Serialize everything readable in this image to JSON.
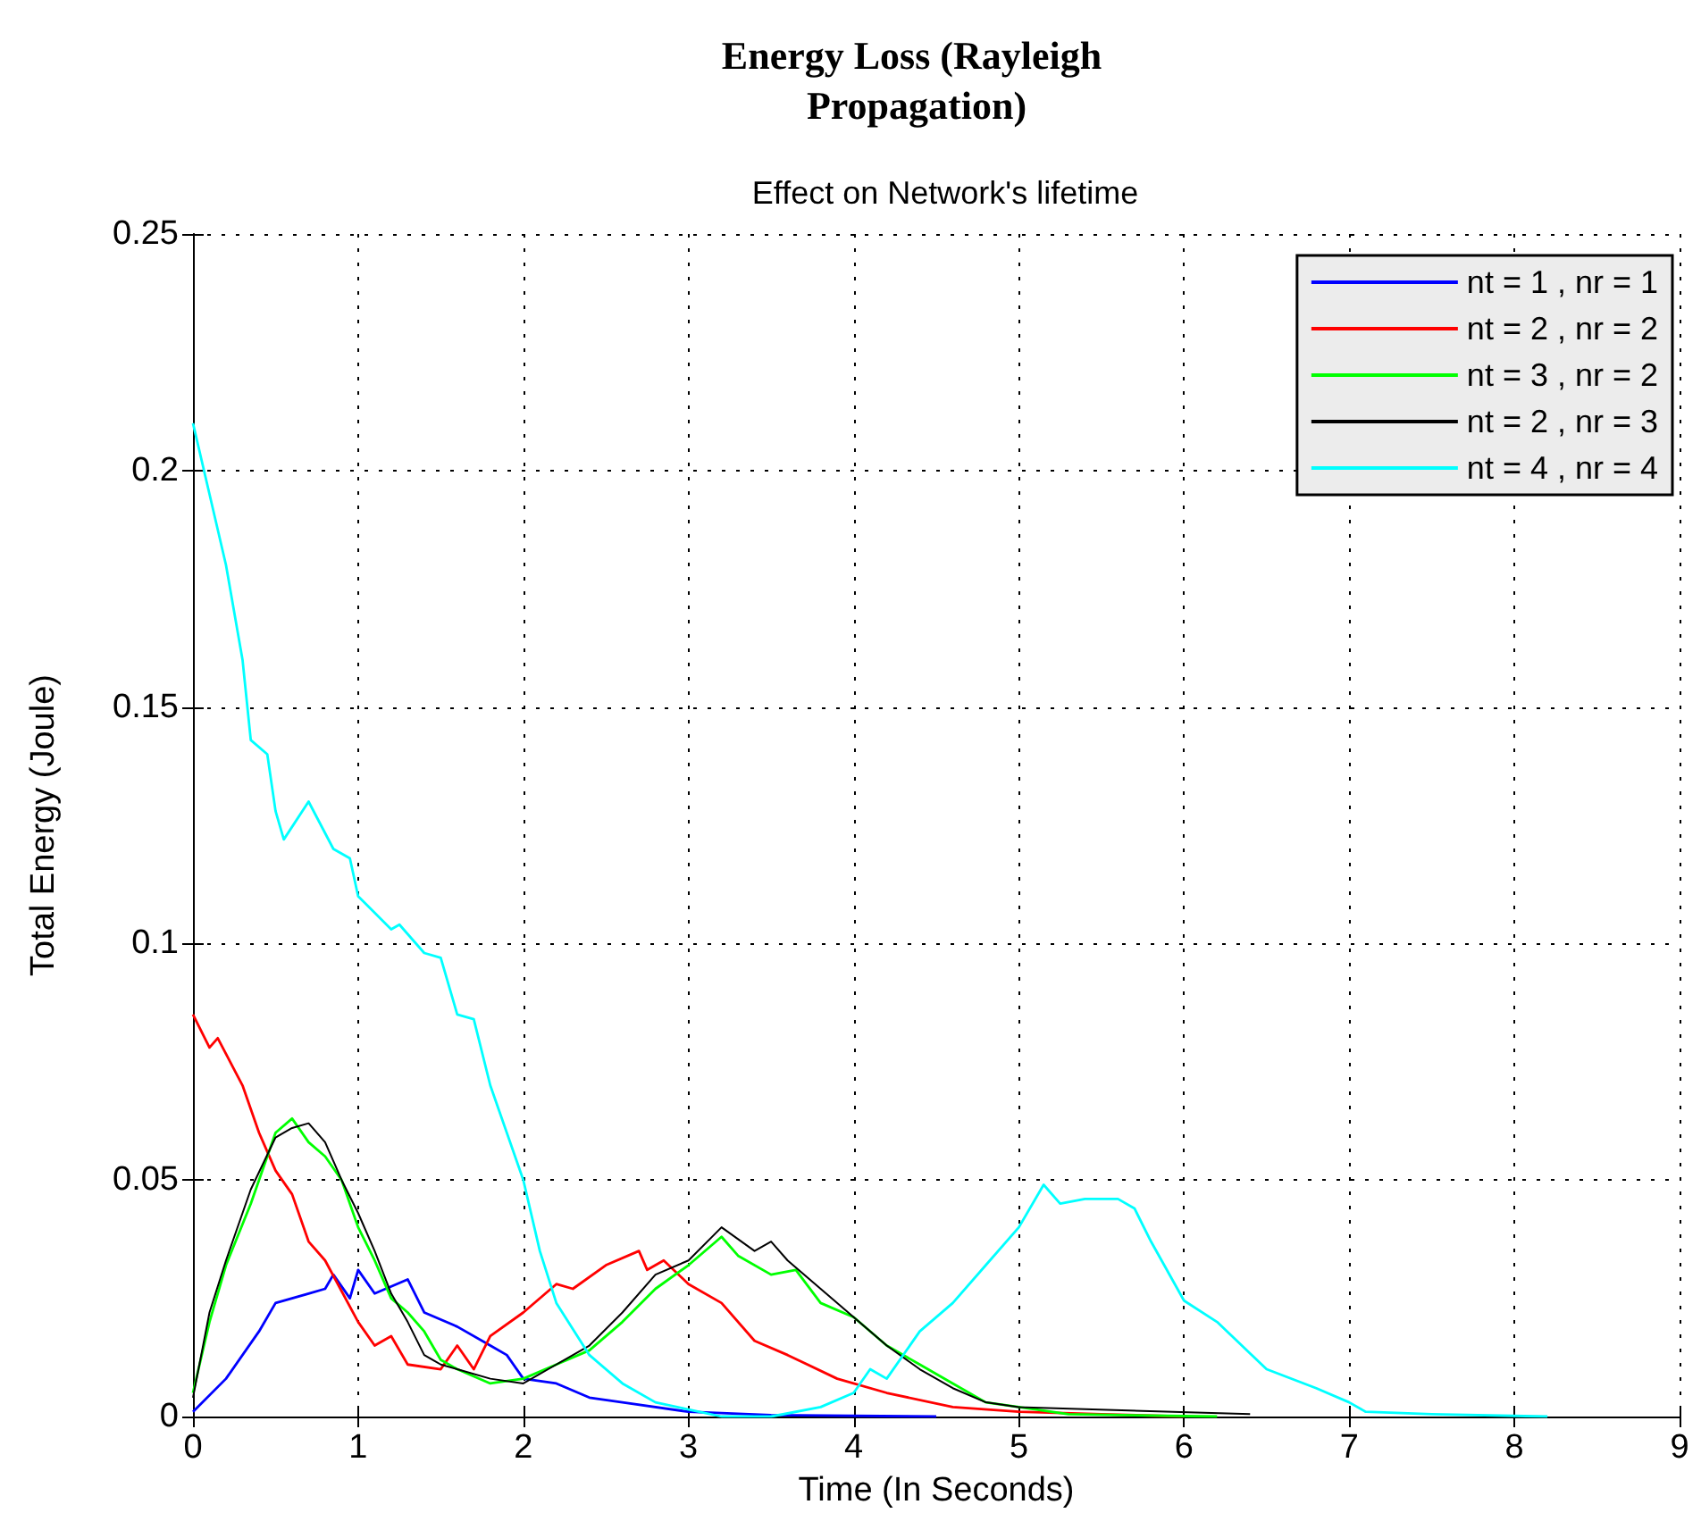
{
  "chart_data": {
    "type": "line",
    "title": "Energy Loss (Rayleigh Propagation)",
    "subtitle": "Effect on Network's lifetime",
    "xlabel": "Time (In Seconds)",
    "ylabel": "Total Energy (Joule)",
    "xlim": [
      0,
      9
    ],
    "xticks": [
      0,
      1,
      2,
      3,
      4,
      5,
      6,
      7,
      8,
      9
    ],
    "ylim": [
      0,
      0.25
    ],
    "yticks": [
      0,
      0.05,
      0.1,
      0.15,
      0.2,
      0.25
    ],
    "grid": true,
    "legend": "top right",
    "marker": "none",
    "line_style": "solid",
    "series": [
      {
        "name": "nt = 1 , nr = 1",
        "color": "#0000ff",
        "x": [
          0,
          0.2,
          0.4,
          0.5,
          0.7,
          0.8,
          0.85,
          0.95,
          1.0,
          1.1,
          1.3,
          1.4,
          1.6,
          1.8,
          1.9,
          2.0,
          2.2,
          2.4,
          2.6,
          3.0,
          3.5,
          4.5
        ],
        "values": [
          0.001,
          0.008,
          0.018,
          0.024,
          0.026,
          0.027,
          0.03,
          0.025,
          0.031,
          0.026,
          0.029,
          0.022,
          0.019,
          0.015,
          0.013,
          0.008,
          0.007,
          0.004,
          0.003,
          0.001,
          0.0003,
          0
        ]
      },
      {
        "name": "nt = 2 , nr = 2",
        "color": "#ff0000",
        "x": [
          0,
          0.1,
          0.15,
          0.3,
          0.4,
          0.5,
          0.6,
          0.7,
          0.8,
          1.0,
          1.1,
          1.2,
          1.3,
          1.5,
          1.6,
          1.7,
          1.8,
          2.0,
          2.2,
          2.3,
          2.5,
          2.7,
          2.75,
          2.85,
          3.0,
          3.2,
          3.4,
          3.6,
          3.9,
          4.2,
          4.6,
          5.0,
          5.5,
          6.0
        ],
        "values": [
          0.085,
          0.078,
          0.08,
          0.07,
          0.06,
          0.052,
          0.047,
          0.037,
          0.033,
          0.02,
          0.015,
          0.017,
          0.011,
          0.01,
          0.015,
          0.01,
          0.017,
          0.022,
          0.028,
          0.027,
          0.032,
          0.035,
          0.031,
          0.033,
          0.028,
          0.024,
          0.016,
          0.013,
          0.008,
          0.005,
          0.002,
          0.001,
          0.0005,
          0
        ]
      },
      {
        "name": "nt = 3 , nr = 2",
        "color": "#00ff00",
        "x": [
          0,
          0.1,
          0.2,
          0.35,
          0.5,
          0.6,
          0.7,
          0.8,
          0.9,
          1.0,
          1.1,
          1.2,
          1.3,
          1.4,
          1.5,
          1.6,
          1.8,
          2.0,
          2.2,
          2.4,
          2.6,
          2.8,
          3.0,
          3.2,
          3.3,
          3.5,
          3.65,
          3.8,
          4.0,
          4.2,
          4.4,
          4.6,
          4.8,
          5.0,
          5.3,
          6.2
        ],
        "values": [
          0.005,
          0.02,
          0.032,
          0.045,
          0.06,
          0.063,
          0.058,
          0.055,
          0.05,
          0.04,
          0.033,
          0.025,
          0.022,
          0.018,
          0.012,
          0.01,
          0.007,
          0.008,
          0.011,
          0.014,
          0.02,
          0.027,
          0.032,
          0.038,
          0.034,
          0.03,
          0.031,
          0.024,
          0.021,
          0.015,
          0.011,
          0.007,
          0.003,
          0.002,
          0.0005,
          0
        ]
      },
      {
        "name": "nt = 2 , nr = 3",
        "color": "#000000",
        "x": [
          0,
          0.1,
          0.2,
          0.35,
          0.5,
          0.6,
          0.7,
          0.8,
          0.9,
          1.0,
          1.1,
          1.2,
          1.3,
          1.4,
          1.5,
          1.6,
          1.8,
          2.0,
          2.2,
          2.4,
          2.6,
          2.8,
          3.0,
          3.2,
          3.4,
          3.5,
          3.6,
          3.8,
          4.0,
          4.2,
          4.4,
          4.6,
          4.8,
          5.0,
          6.4
        ],
        "values": [
          0.004,
          0.022,
          0.033,
          0.048,
          0.059,
          0.061,
          0.062,
          0.058,
          0.05,
          0.043,
          0.035,
          0.026,
          0.02,
          0.013,
          0.011,
          0.01,
          0.008,
          0.007,
          0.011,
          0.015,
          0.022,
          0.03,
          0.033,
          0.04,
          0.035,
          0.037,
          0.033,
          0.027,
          0.021,
          0.015,
          0.01,
          0.006,
          0.003,
          0.002,
          0.0005
        ]
      },
      {
        "name": "nt = 4 , nr = 4",
        "color": "#00ffff",
        "x": [
          0,
          0.1,
          0.2,
          0.3,
          0.35,
          0.45,
          0.5,
          0.55,
          0.7,
          0.85,
          0.95,
          1.0,
          1.2,
          1.25,
          1.4,
          1.5,
          1.6,
          1.7,
          1.8,
          2.0,
          2.1,
          2.2,
          2.4,
          2.6,
          2.8,
          3.0,
          3.2,
          3.5,
          3.8,
          4.0,
          4.1,
          4.2,
          4.4,
          4.6,
          4.8,
          5.0,
          5.15,
          5.25,
          5.4,
          5.6,
          5.7,
          5.8,
          6.0,
          6.2,
          6.5,
          6.8,
          7.0,
          7.1,
          7.5,
          8.2
        ],
        "values": [
          0.21,
          0.195,
          0.18,
          0.16,
          0.143,
          0.14,
          0.128,
          0.122,
          0.13,
          0.12,
          0.118,
          0.11,
          0.103,
          0.104,
          0.098,
          0.097,
          0.085,
          0.084,
          0.07,
          0.05,
          0.035,
          0.024,
          0.013,
          0.007,
          0.003,
          0.0015,
          0,
          0,
          0.002,
          0.005,
          0.01,
          0.008,
          0.018,
          0.024,
          0.032,
          0.04,
          0.049,
          0.045,
          0.046,
          0.046,
          0.044,
          0.037,
          0.0245,
          0.02,
          0.01,
          0.006,
          0.003,
          0.001,
          0.0005,
          0
        ]
      }
    ]
  }
}
